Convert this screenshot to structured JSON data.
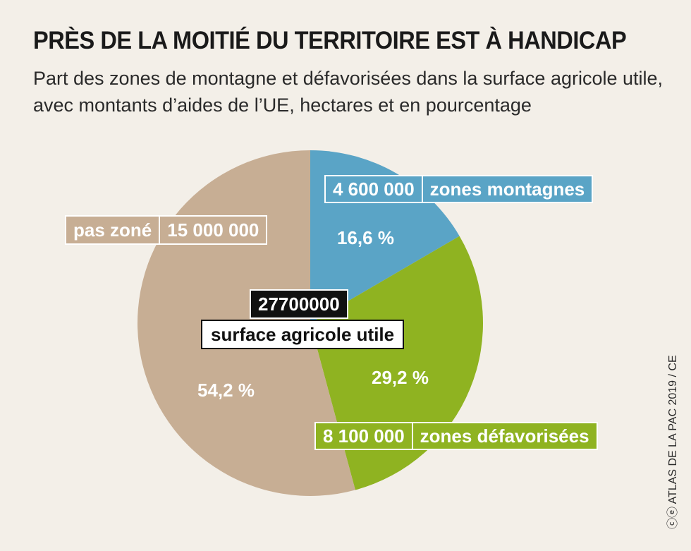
{
  "title": "PRÈS DE LA MOITIÉ DU TERRITOIRE EST À HANDICAP",
  "subtitle": "Part des zones de montagne et défavorisées dans la surface agricole utile, avec montants d’aides de l’UE, hectares et en pourcentage",
  "credit": "ⓒⓔ ATLAS DE LA PAC 2019 / CE",
  "chart_data": {
    "type": "pie",
    "total": {
      "value": "27700000",
      "label": "surface agricole utile"
    },
    "slices": [
      {
        "name": "zones montagnes",
        "hectares": "4 600 000",
        "percent": 16.6,
        "percent_label": "16,6 %",
        "color": "#5aa4c6"
      },
      {
        "name": "zones défavorisées",
        "hectares": "8 100 000",
        "percent": 29.2,
        "percent_label": "29,2 %",
        "color": "#8fb321"
      },
      {
        "name": "pas zoné",
        "hectares": "15 000 000",
        "percent": 54.2,
        "percent_label": "54,2 %",
        "color": "#c7ae94"
      }
    ]
  }
}
